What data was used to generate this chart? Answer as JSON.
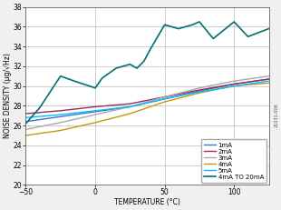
{
  "title": "",
  "xlabel": "TEMPERATURE (°C)",
  "ylabel": "NOISE DENSITY (μg/√Hz)",
  "xlim": [
    -50,
    125
  ],
  "ylim": [
    20,
    38
  ],
  "xticks": [
    -50,
    0,
    50,
    100
  ],
  "yticks": [
    20,
    22,
    24,
    26,
    28,
    30,
    32,
    34,
    36,
    38
  ],
  "grid": true,
  "series": {
    "1mA": {
      "color": "#4472C4",
      "x": [
        -50,
        -25,
        0,
        25,
        50,
        75,
        100,
        125
      ],
      "y": [
        26.4,
        26.9,
        27.4,
        27.9,
        28.7,
        29.5,
        30.2,
        30.7
      ]
    },
    "2mA": {
      "color": "#9E2A5A",
      "x": [
        -50,
        -25,
        0,
        25,
        50,
        75,
        100,
        125
      ],
      "y": [
        27.2,
        27.5,
        27.9,
        28.2,
        28.9,
        29.6,
        30.2,
        30.7
      ]
    },
    "3mA": {
      "color": "#A8A8A8",
      "x": [
        -50,
        -25,
        0,
        25,
        50,
        75,
        100,
        125
      ],
      "y": [
        25.6,
        26.3,
        27.1,
        27.9,
        28.9,
        29.8,
        30.5,
        31.0
      ]
    },
    "4mA": {
      "color": "#C8960C",
      "x": [
        -50,
        -25,
        0,
        25,
        50,
        75,
        100,
        125
      ],
      "y": [
        25.0,
        25.5,
        26.3,
        27.2,
        28.4,
        29.3,
        30.0,
        30.3
      ]
    },
    "5mA": {
      "color": "#00BFFF",
      "x": [
        -50,
        -25,
        0,
        25,
        50,
        75,
        100,
        125
      ],
      "y": [
        26.8,
        27.1,
        27.5,
        27.9,
        28.7,
        29.4,
        30.0,
        30.5
      ]
    },
    "4mA TO 20mA": {
      "color": "#007070",
      "x": [
        -50,
        -40,
        -25,
        -15,
        0,
        5,
        15,
        25,
        30,
        35,
        40,
        50,
        55,
        60,
        70,
        75,
        85,
        100,
        110,
        125
      ],
      "y": [
        26.2,
        27.8,
        31.0,
        30.5,
        29.8,
        30.8,
        31.8,
        32.2,
        31.8,
        32.5,
        33.8,
        36.2,
        36.0,
        35.8,
        36.2,
        36.5,
        34.8,
        36.5,
        35.0,
        35.8
      ]
    }
  },
  "legend_loc": "lower right",
  "bg_color": "#f0f0f0",
  "plot_bg_color": "#ffffff",
  "label_fontsize": 5.5,
  "tick_fontsize": 5.5,
  "legend_fontsize": 5.0,
  "linewidth": 1.0
}
